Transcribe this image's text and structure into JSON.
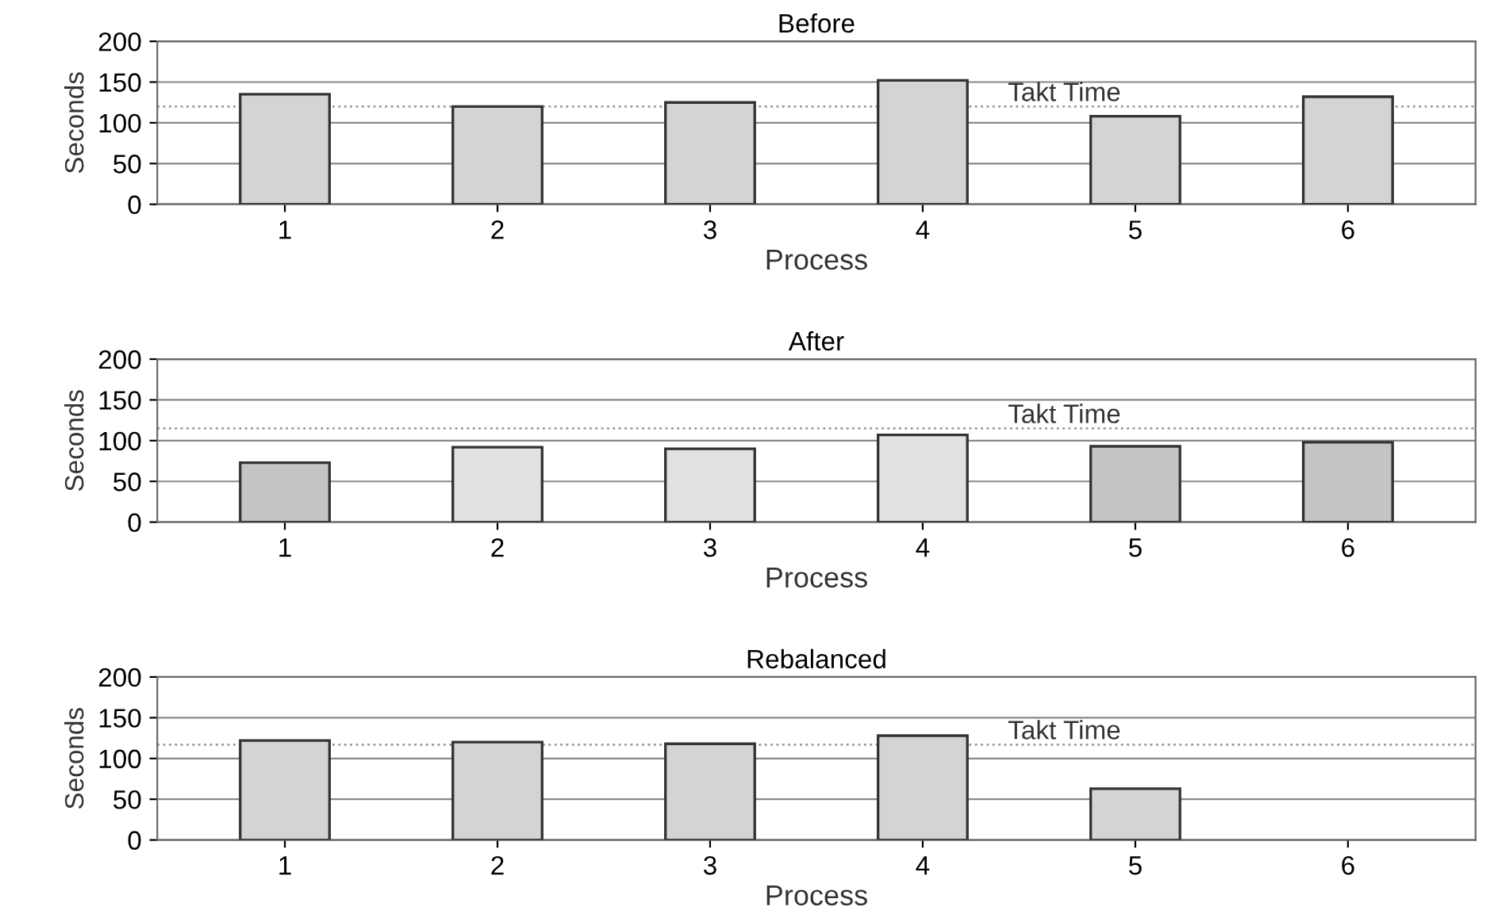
{
  "chart_data": [
    {
      "type": "bar",
      "title": "Before",
      "xlabel": "Process",
      "ylabel": "Seconds",
      "categories": [
        "1",
        "2",
        "3",
        "4",
        "5",
        "6"
      ],
      "values": [
        135,
        120,
        125,
        152,
        108,
        132
      ],
      "color": "#d4d4d4",
      "ylim": [
        0,
        200
      ],
      "yticks": [
        0,
        50,
        100,
        150,
        200
      ],
      "grid": "y",
      "ref_lines": [
        {
          "axis": "y",
          "value": 120,
          "label": "Takt Time",
          "color": "#999999",
          "line_style": "dotted"
        }
      ]
    },
    {
      "type": "bar",
      "title": "After",
      "xlabel": "Process",
      "ylabel": "Seconds",
      "categories": [
        "1",
        "2",
        "3",
        "4",
        "5",
        "6"
      ],
      "values": [
        73,
        92,
        90,
        107,
        93,
        98
      ],
      "colors": [
        "#c4c4c4",
        "#e2e2e2",
        "#e2e2e2",
        "#e2e2e2",
        "#c4c4c4",
        "#c4c4c4"
      ],
      "ylim": [
        0,
        200
      ],
      "yticks": [
        0,
        50,
        100,
        150,
        200
      ],
      "grid": "y",
      "ref_lines": [
        {
          "axis": "y",
          "value": 115,
          "label": "Takt Time",
          "color": "#999999",
          "line_style": "dotted"
        }
      ]
    },
    {
      "type": "bar",
      "title": "Rebalanced",
      "xlabel": "Process",
      "ylabel": "Seconds",
      "categories": [
        "1",
        "2",
        "3",
        "4",
        "5",
        "6"
      ],
      "values": [
        122,
        120,
        118,
        128,
        63,
        null
      ],
      "color": "#d4d4d4",
      "ylim": [
        0,
        200
      ],
      "yticks": [
        0,
        50,
        100,
        150,
        200
      ],
      "grid": "y",
      "ref_lines": [
        {
          "axis": "y",
          "value": 117,
          "label": "Takt Time",
          "color": "#999999",
          "line_style": "dotted"
        }
      ]
    }
  ]
}
